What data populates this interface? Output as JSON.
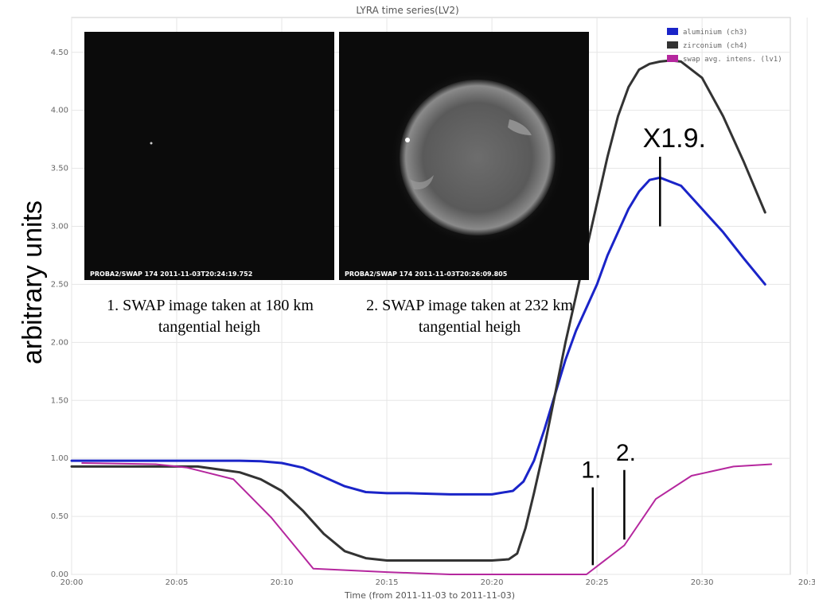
{
  "chart_data": {
    "type": "line",
    "title": "LYRA time series(LV2)",
    "xlabel": "Time (from 2011-11-03 to 2011-11-03)",
    "ylabel": "arbitrary units",
    "xlim": [
      "20:00",
      "20:33"
    ],
    "ylim": [
      0,
      4.8
    ],
    "x_ticks": [
      "20:00",
      "20:05",
      "20:10",
      "20:15",
      "20:20",
      "20:25",
      "20:30",
      "20:3"
    ],
    "y_ticks": [
      "0.00",
      "0.50",
      "1.00",
      "1.50",
      "2.00",
      "2.50",
      "3.00",
      "3.50",
      "4.00",
      "4.50"
    ],
    "legend_position": "top-right",
    "grid": true,
    "series": [
      {
        "name": "aluminium (ch3)",
        "color": "#1a24c8",
        "x_minutes": [
          0,
          2,
          4,
          6,
          8,
          9,
          10,
          11,
          12,
          13,
          14,
          15,
          16,
          18,
          20,
          21,
          21.5,
          22,
          22.5,
          23,
          23.5,
          24,
          24.5,
          25,
          25.5,
          26,
          26.5,
          27,
          27.5,
          28,
          29,
          30,
          31,
          32,
          33
        ],
        "values": [
          0.98,
          0.98,
          0.98,
          0.98,
          0.98,
          0.975,
          0.96,
          0.92,
          0.84,
          0.76,
          0.71,
          0.7,
          0.7,
          0.69,
          0.69,
          0.72,
          0.8,
          0.98,
          1.25,
          1.55,
          1.85,
          2.1,
          2.3,
          2.5,
          2.75,
          2.95,
          3.15,
          3.3,
          3.4,
          3.42,
          3.35,
          3.15,
          2.95,
          2.72,
          2.5
        ]
      },
      {
        "name": "zirconium (ch4)",
        "color": "#333333",
        "x_minutes": [
          0,
          2,
          4,
          6,
          8,
          9,
          10,
          11,
          12,
          13,
          14,
          15,
          16,
          18,
          20,
          20.8,
          21.2,
          21.6,
          22,
          22.5,
          23,
          23.5,
          24,
          24.5,
          25,
          25.5,
          26,
          26.5,
          27,
          27.5,
          28,
          28.5,
          29,
          30,
          31,
          32,
          33
        ],
        "values": [
          0.93,
          0.93,
          0.93,
          0.93,
          0.88,
          0.82,
          0.72,
          0.55,
          0.35,
          0.2,
          0.14,
          0.12,
          0.12,
          0.12,
          0.12,
          0.13,
          0.18,
          0.4,
          0.7,
          1.1,
          1.55,
          2.0,
          2.4,
          2.8,
          3.2,
          3.6,
          3.95,
          4.2,
          4.35,
          4.4,
          4.42,
          4.43,
          4.42,
          4.28,
          3.95,
          3.55,
          3.12
        ]
      },
      {
        "name": "swap avg. intens. (lv1)",
        "color": "#b5279e",
        "x_minutes": [
          0.5,
          4,
          5.5,
          7.7,
          9.5,
          11.5,
          15,
          18,
          20,
          22,
          24.5,
          26.3,
          27.8,
          29.5,
          31.5,
          33.3
        ],
        "values": [
          0.96,
          0.95,
          0.92,
          0.82,
          0.49,
          0.05,
          0.02,
          0.0,
          0.0,
          0.0,
          0.0,
          0.25,
          0.65,
          0.85,
          0.93,
          0.95
        ]
      }
    ],
    "annotations": [
      {
        "text": "X1.9.",
        "x_minute": 28.0,
        "line_from": 3.6,
        "line_to": 3.0
      },
      {
        "text": "1.",
        "x_minute": 24.8,
        "line_from": 0.75,
        "line_to": 0.08
      },
      {
        "text": "2.",
        "x_minute": 26.3,
        "line_from": 0.9,
        "line_to": 0.3
      }
    ]
  },
  "insets": [
    {
      "label": "PROBA2/SWAP 174   2011-11-03T20:24:19.752",
      "caption_line1": "1. SWAP image taken at 180 km",
      "caption_line2": "tangential heigh",
      "sun_visible": false
    },
    {
      "label": "PROBA2/SWAP 174   2011-11-03T20:26:09.805",
      "caption_line1": "2. SWAP image taken at 232 km",
      "caption_line2": "tangential heigh",
      "sun_visible": true
    }
  ]
}
